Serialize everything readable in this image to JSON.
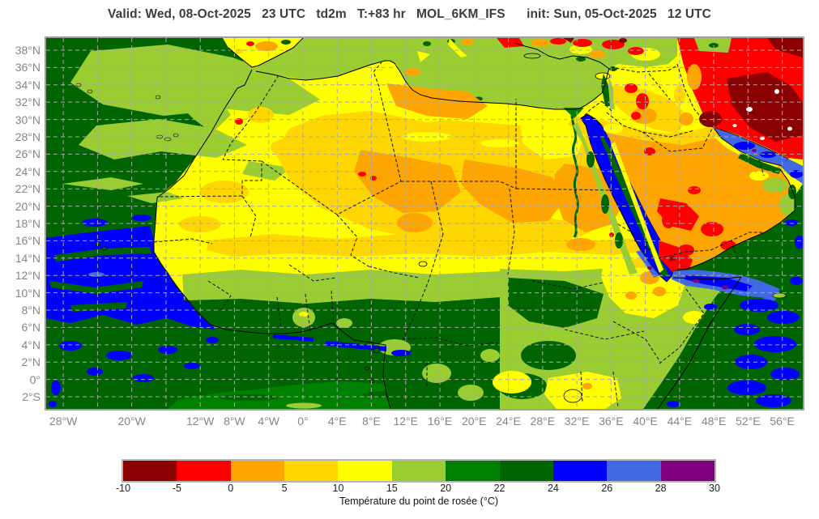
{
  "title": "Valid: Wed, 08-Oct-2025   23 UTC   td2m   T:+83 hr   MOL_6KM_IFS      init: Sun, 05-Oct-2025   12 UTC",
  "map": {
    "extent": {
      "lon_min": -30,
      "lon_max": 58.4,
      "lat_max": 39.4,
      "lat_min": -3.4
    },
    "lat_ticks": [
      {
        "label": "38°N",
        "deg": 38
      },
      {
        "label": "36°N",
        "deg": 36
      },
      {
        "label": "34°N",
        "deg": 34
      },
      {
        "label": "32°N",
        "deg": 32
      },
      {
        "label": "30°N",
        "deg": 30
      },
      {
        "label": "28°N",
        "deg": 28
      },
      {
        "label": "26°N",
        "deg": 26
      },
      {
        "label": "24°N",
        "deg": 24
      },
      {
        "label": "22°N",
        "deg": 22
      },
      {
        "label": "20°N",
        "deg": 20
      },
      {
        "label": "18°N",
        "deg": 18
      },
      {
        "label": "16°N",
        "deg": 16
      },
      {
        "label": "14°N",
        "deg": 14
      },
      {
        "label": "12°N",
        "deg": 12
      },
      {
        "label": "10°N",
        "deg": 10
      },
      {
        "label": "8°N",
        "deg": 8
      },
      {
        "label": "6°N",
        "deg": 6
      },
      {
        "label": "4°N",
        "deg": 4
      },
      {
        "label": "2°N",
        "deg": 2
      },
      {
        "label": "0°",
        "deg": 0
      },
      {
        "label": "2°S",
        "deg": -2
      }
    ],
    "lon_ticks": [
      {
        "label": "28°W",
        "deg": -28
      },
      {
        "label": "20°W",
        "deg": -20
      },
      {
        "label": "12°W",
        "deg": -12
      },
      {
        "label": "8°W",
        "deg": -8
      },
      {
        "label": "4°W",
        "deg": -4
      },
      {
        "label": "0°",
        "deg": 0
      },
      {
        "label": "4°E",
        "deg": 4
      },
      {
        "label": "8°E",
        "deg": 8
      },
      {
        "label": "12°E",
        "deg": 12
      },
      {
        "label": "16°E",
        "deg": 16
      },
      {
        "label": "20°E",
        "deg": 20
      },
      {
        "label": "24°E",
        "deg": 24
      },
      {
        "label": "28°E",
        "deg": 28
      },
      {
        "label": "32°E",
        "deg": 32
      },
      {
        "label": "36°E",
        "deg": 36
      },
      {
        "label": "40°E",
        "deg": 40
      },
      {
        "label": "44°E",
        "deg": 44
      },
      {
        "label": "48°E",
        "deg": 48
      },
      {
        "label": "52°E",
        "deg": 52
      },
      {
        "label": "56°E",
        "deg": 56
      }
    ],
    "grid": {
      "lon_start": -28,
      "lon_end": 56,
      "lon_step": 4,
      "lat_start": -2,
      "lat_end": 38,
      "lat_step": 2
    }
  },
  "colorbar": {
    "title": "Température du point de rosée (°C)",
    "tick_labels": [
      "-10",
      "-5",
      "0",
      "5",
      "10",
      "15",
      "20",
      "22",
      "24",
      "26",
      "28",
      "30"
    ],
    "segments": [
      {
        "from": -10,
        "to": -5,
        "key": "m10"
      },
      {
        "from": -5,
        "to": 0,
        "key": "m5"
      },
      {
        "from": 0,
        "to": 5,
        "key": "p0"
      },
      {
        "from": 5,
        "to": 10,
        "key": "p5"
      },
      {
        "from": 10,
        "to": 15,
        "key": "p10"
      },
      {
        "from": 15,
        "to": 20,
        "key": "p15"
      },
      {
        "from": 20,
        "to": 22,
        "key": "p20"
      },
      {
        "from": 22,
        "to": 24,
        "key": "p22"
      },
      {
        "from": 24,
        "to": 26,
        "key": "p24"
      },
      {
        "from": 26,
        "to": 28,
        "key": "p26"
      },
      {
        "from": 28,
        "to": 30,
        "key": "p28"
      }
    ]
  },
  "palette": {
    "m10": "#8B0000",
    "m5": "#FF0000",
    "p0": "#FFA500",
    "p5": "#FFD700",
    "p10": "#FFFF00",
    "p15": "#9ACD32",
    "p20": "#008000",
    "p22": "#006400",
    "p24": "#0000FF",
    "p26": "#4169E1",
    "p28": "#800080"
  },
  "ui": {
    "background": "#ffffff",
    "title_color": "#3c3c3c",
    "axis_label_color": "#858585",
    "grid_color": "#a8a8a8",
    "frame_color": "#9e9e9e"
  }
}
